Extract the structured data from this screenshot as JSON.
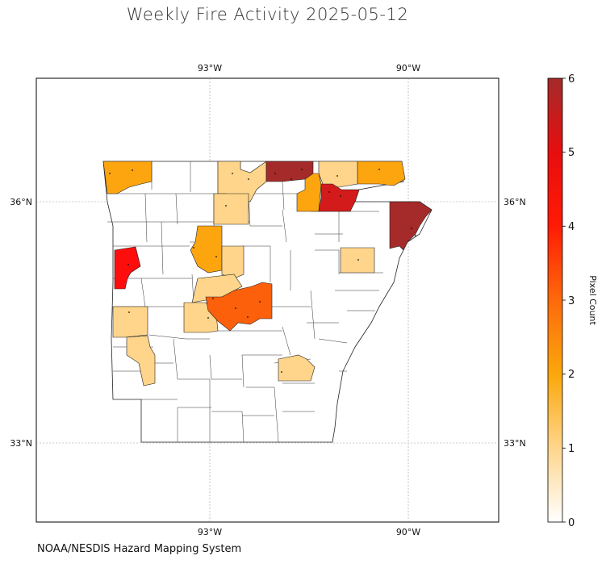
{
  "title": "Weekly Fire Activity 2025-05-12",
  "footer": "NOAA/NESDIS Hazard Mapping System",
  "map": {
    "longitude_ticks": [
      "93°W",
      "90°W"
    ],
    "latitude_ticks": [
      "36°N",
      "33°N"
    ],
    "gridlines": true,
    "colorbar": {
      "label": "Pixel Count",
      "ticks": [
        "0",
        "1",
        "2",
        "3",
        "4",
        "5",
        "6"
      ],
      "range": [
        0,
        6
      ],
      "colors": [
        "#ffffff",
        "#fed58a",
        "#fba80c",
        "#fe6a0b",
        "#ff1a05",
        "#e80e0e",
        "#a52a2a"
      ]
    },
    "county_colors": {
      "zero": "#ffffff",
      "one": "#fed58a",
      "two": "#fda50f",
      "three": "#fd600b",
      "four": "#fe0d0d",
      "five": "#d41b1b",
      "six": "#a52a2a"
    }
  }
}
